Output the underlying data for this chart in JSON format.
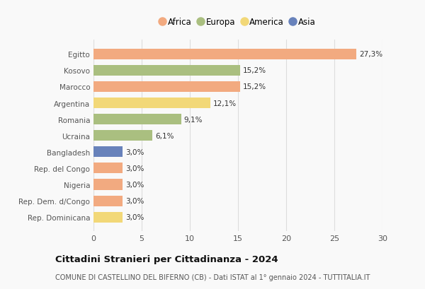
{
  "countries": [
    "Egitto",
    "Kosovo",
    "Marocco",
    "Argentina",
    "Romania",
    "Ucraina",
    "Bangladesh",
    "Rep. del Congo",
    "Nigeria",
    "Rep. Dem. d/Congo",
    "Rep. Dominicana"
  ],
  "values": [
    27.3,
    15.2,
    15.2,
    12.1,
    9.1,
    6.1,
    3.0,
    3.0,
    3.0,
    3.0,
    3.0
  ],
  "labels": [
    "27,3%",
    "15,2%",
    "15,2%",
    "12,1%",
    "9,1%",
    "6,1%",
    "3,0%",
    "3,0%",
    "3,0%",
    "3,0%",
    "3,0%"
  ],
  "continents": [
    "Africa",
    "Europa",
    "Africa",
    "America",
    "Europa",
    "Europa",
    "Asia",
    "Africa",
    "Africa",
    "Africa",
    "America"
  ],
  "colors": {
    "Africa": "#F2AA80",
    "Europa": "#AABF80",
    "America": "#F2D878",
    "Asia": "#6882BB"
  },
  "legend_order": [
    "Africa",
    "Europa",
    "America",
    "Asia"
  ],
  "xlim": [
    0,
    30
  ],
  "xticks": [
    0,
    5,
    10,
    15,
    20,
    25,
    30
  ],
  "title": "Cittadini Stranieri per Cittadinanza - 2024",
  "subtitle": "COMUNE DI CASTELLINO DEL BIFERNO (CB) - Dati ISTAT al 1° gennaio 2024 - TUTTITALIA.IT",
  "bg_color": "#f9f9f9",
  "grid_color": "#dddddd"
}
